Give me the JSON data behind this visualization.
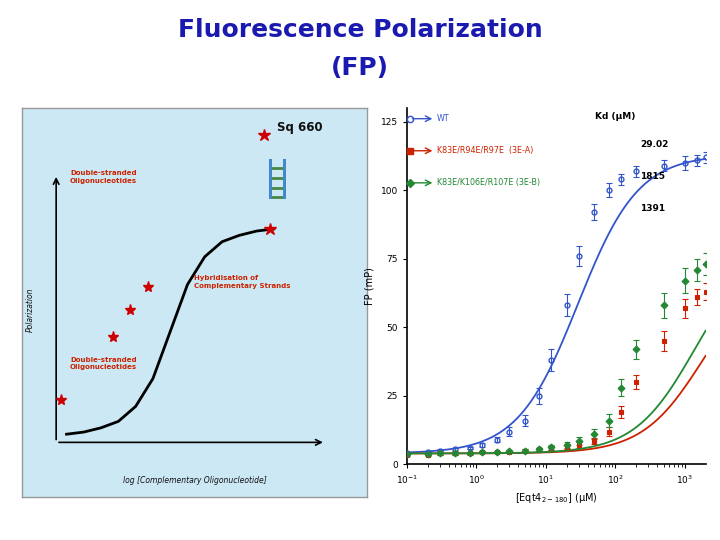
{
  "title_line1": "Fluorescence Polarization",
  "title_line2": "(FP)",
  "title_color": "#1a1ab0",
  "title_fontsize": 18,
  "bg_color": "#ffffff",
  "left_panel": {
    "bg_color": "#cce8f4",
    "xlabel": "log [Complementary Oligonucleotide]",
    "ylabel": "Polarization",
    "label1": "Double-stranded\nOligonucleotides",
    "label2": "Hybridisation of\nComplementary Strands",
    "label3": "Double-stranded\nOligonucleotides",
    "sq660_label": "Sq 660",
    "label_color": "#cc2200",
    "sigmoid_x": [
      -3.0,
      -2.5,
      -2.0,
      -1.5,
      -1.0,
      -0.5,
      0.0,
      0.5,
      1.0,
      1.5,
      2.0,
      2.5,
      3.0
    ],
    "sigmoid_y": [
      0.02,
      0.03,
      0.05,
      0.08,
      0.15,
      0.28,
      0.5,
      0.72,
      0.85,
      0.92,
      0.95,
      0.97,
      0.98
    ]
  },
  "right_panel": {
    "xlabel": "[Eqt4$_{2-180}$] (μM)",
    "ylabel": "FP (mP)",
    "ylim": [
      0,
      130
    ],
    "kd_title": "Kd (μM)",
    "legend_entries": [
      {
        "label": "WT",
        "color": "#3355cc",
        "kd": "29.02",
        "marker": "o",
        "fillstyle": "none"
      },
      {
        "label": "K83E/R94E/R97E  (3E-A)",
        "color": "#cc2200",
        "kd": "1815",
        "marker": "s",
        "fillstyle": "full"
      },
      {
        "label": "K83E/K106E/R107E (3E-B)",
        "color": "#228833",
        "kd": "1391",
        "marker": "D",
        "fillstyle": "full"
      }
    ],
    "wt_x": [
      0.1,
      0.2,
      0.3,
      0.5,
      0.8,
      1.2,
      2.0,
      3.0,
      5.0,
      8.0,
      12,
      20,
      30,
      50,
      80,
      120,
      200,
      500,
      1000,
      1500,
      2000
    ],
    "wt_y": [
      4,
      4.5,
      5,
      5.5,
      6,
      7,
      9,
      12,
      16,
      25,
      38,
      58,
      76,
      92,
      100,
      104,
      107,
      109,
      110,
      111,
      112
    ],
    "wt_yerr": [
      0.5,
      0.5,
      0.5,
      0.5,
      0.5,
      0.8,
      1.0,
      1.5,
      2.0,
      3.0,
      4.0,
      4.0,
      3.5,
      3.0,
      2.5,
      2.0,
      2.0,
      2.0,
      2.5,
      2.0,
      2.0
    ],
    "ea_x": [
      0.1,
      0.2,
      0.3,
      0.5,
      0.8,
      1.2,
      2.0,
      3.0,
      5.0,
      8.0,
      12,
      20,
      30,
      50,
      80,
      120,
      200,
      500,
      1000,
      1500,
      2000
    ],
    "ea_y": [
      3.5,
      3.5,
      4.0,
      4.0,
      4.0,
      4.5,
      4.5,
      4.5,
      5.0,
      5.5,
      6.0,
      6.5,
      7.0,
      8.5,
      12,
      19,
      30,
      45,
      57,
      61,
      63
    ],
    "ea_yerr": [
      0.4,
      0.4,
      0.4,
      0.4,
      0.4,
      0.4,
      0.4,
      0.4,
      0.5,
      0.5,
      0.6,
      0.8,
      1.0,
      1.2,
      1.8,
      2.2,
      2.5,
      3.5,
      3.5,
      3.0,
      3.0
    ],
    "eb_x": [
      0.1,
      0.2,
      0.3,
      0.5,
      0.8,
      1.2,
      2.0,
      3.0,
      5.0,
      8.0,
      12,
      20,
      30,
      50,
      80,
      120,
      200,
      500,
      1000,
      1500,
      2000
    ],
    "eb_y": [
      3.8,
      3.8,
      4.0,
      4.0,
      4.2,
      4.5,
      4.5,
      4.8,
      5.0,
      5.5,
      6.2,
      7.0,
      8.5,
      11,
      16,
      28,
      42,
      58,
      67,
      71,
      73
    ],
    "eb_yerr": [
      0.4,
      0.4,
      0.4,
      0.4,
      0.4,
      0.4,
      0.4,
      0.4,
      0.5,
      0.6,
      0.8,
      1.2,
      1.5,
      1.8,
      2.5,
      3.0,
      3.5,
      4.5,
      4.5,
      4.0,
      4.0
    ]
  }
}
